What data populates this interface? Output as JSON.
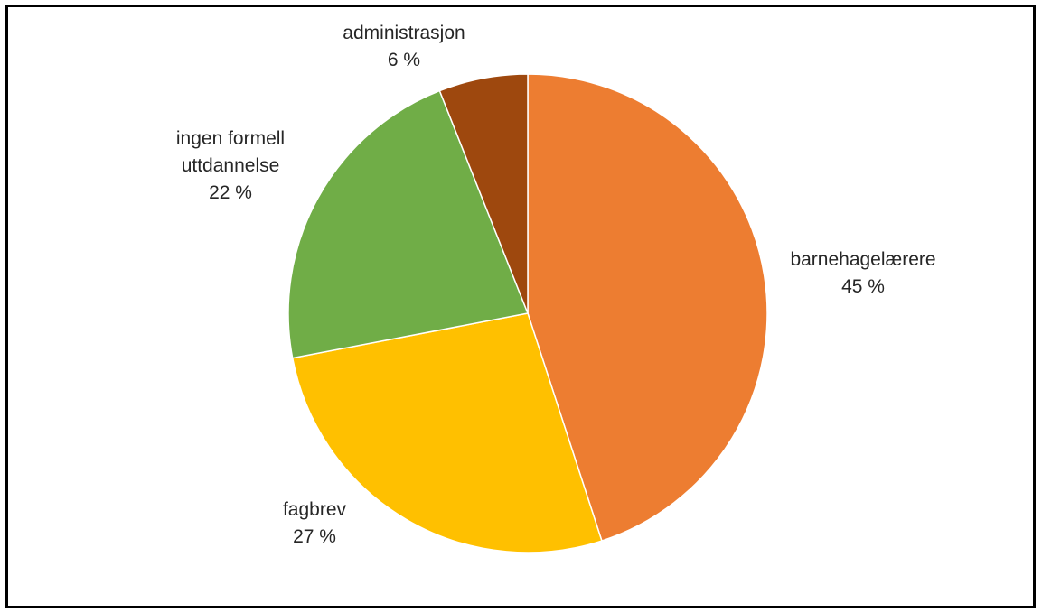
{
  "chart_data": {
    "type": "pie",
    "title": "",
    "start_angle_deg": 0,
    "direction": "clockwise",
    "legend": "none",
    "data_labels": "category and percent, outside",
    "slices": [
      {
        "label": "barnehagelærere",
        "value": 45,
        "value_text": "45 %",
        "color": "#ED7D31"
      },
      {
        "label": "fagbrev",
        "value": 27,
        "value_text": "27 %",
        "color": "#FFC000"
      },
      {
        "label": "ingen formell uttdannelse",
        "label_lines": [
          "ingen formell",
          "uttdannelse"
        ],
        "value": 22,
        "value_text": "22 %",
        "color": "#70AD47"
      },
      {
        "label": "administrasjon",
        "value": 6,
        "value_text": "6 %",
        "color": "#9E480E"
      }
    ]
  }
}
